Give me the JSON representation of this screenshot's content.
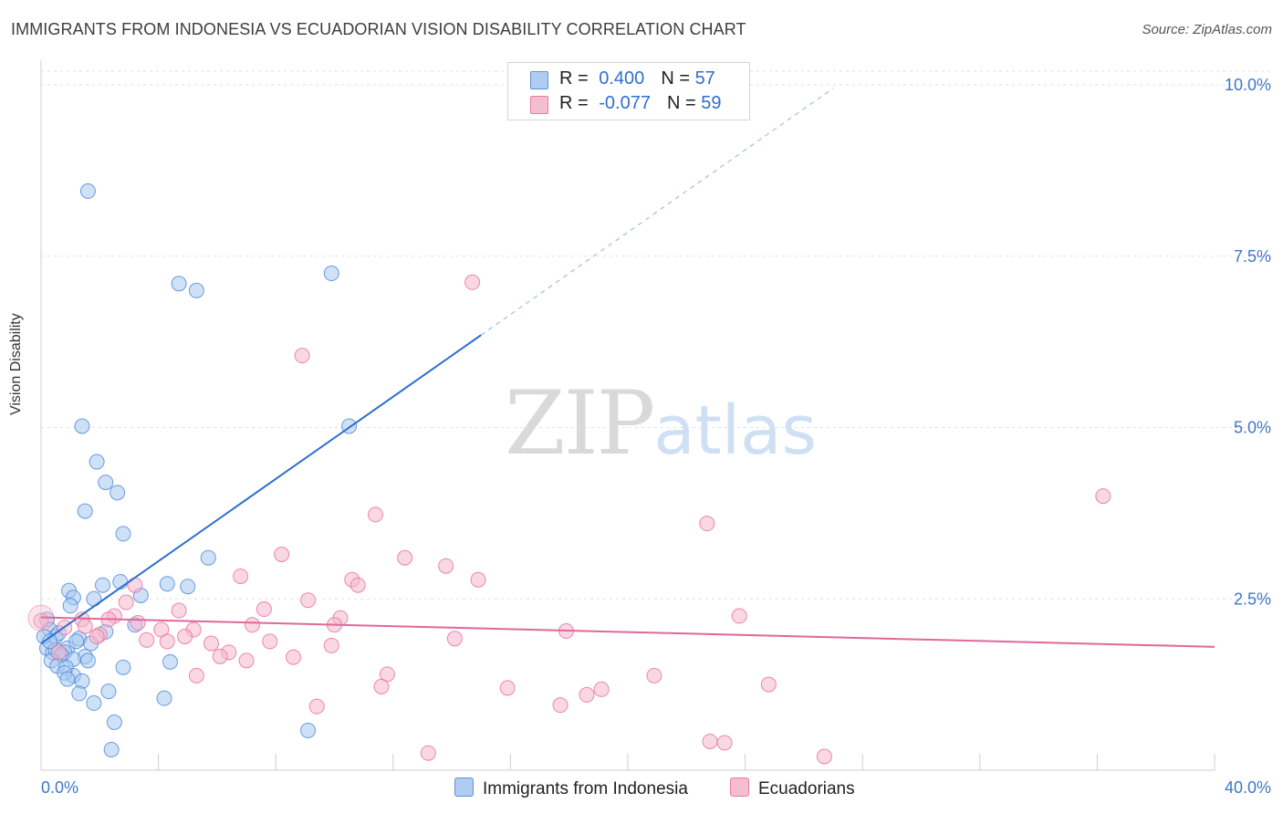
{
  "title": "IMMIGRANTS FROM INDONESIA VS ECUADORIAN VISION DISABILITY CORRELATION CHART",
  "source": "Source: ZipAtlas.com",
  "watermark": {
    "zip": "ZIP",
    "atlas": "atlas"
  },
  "legend": {
    "rows": [
      {
        "r_label": "R = ",
        "r_value": "0.400",
        "n_label": "N = ",
        "n_value": "57",
        "color": "#a8c8f0"
      },
      {
        "r_label": "R = ",
        "r_value": "-0.077",
        "n_label": "N = ",
        "n_value": "59",
        "color": "#f5b8cc"
      }
    ]
  },
  "bottom_legend": [
    {
      "label": "Immigrants from Indonesia",
      "color": "#a8c8f0"
    },
    {
      "label": "Ecuadorians",
      "color": "#f5b8cc"
    }
  ],
  "chart_data": {
    "type": "scatter",
    "ylabel": "Vision Disability",
    "xlabel": "",
    "xlim": [
      0,
      40
    ],
    "ylim": [
      0,
      10.2
    ],
    "x_tick_labels": [
      "0.0%",
      "40.0%"
    ],
    "y_ticks": [
      2.5,
      5.0,
      7.5,
      10.0
    ],
    "y_tick_labels": [
      "2.5%",
      "5.0%",
      "7.5%",
      "10.0%"
    ],
    "grid": true,
    "colors": {
      "blue": "#4a86d8",
      "pink": "#e86d99",
      "blue_line": "#2e6fd0",
      "pink_line": "#e0689a"
    },
    "series": [
      {
        "name": "Immigrants from Indonesia",
        "color": "#4a86d8",
        "trend": {
          "x0": 0,
          "y0": 1.85,
          "x1": 15.0,
          "y1": 6.35,
          "dash_to_x": 27.0,
          "dash_to_y": 9.95
        },
        "points": [
          [
            1.6,
            8.45
          ],
          [
            9.9,
            7.25
          ],
          [
            4.7,
            7.1
          ],
          [
            5.3,
            7.0
          ],
          [
            1.4,
            5.02
          ],
          [
            10.5,
            5.02
          ],
          [
            1.9,
            4.5
          ],
          [
            2.2,
            4.2
          ],
          [
            2.6,
            4.05
          ],
          [
            1.5,
            3.78
          ],
          [
            2.8,
            3.45
          ],
          [
            5.7,
            3.1
          ],
          [
            0.95,
            2.62
          ],
          [
            2.1,
            2.7
          ],
          [
            2.7,
            2.75
          ],
          [
            4.3,
            2.72
          ],
          [
            5.0,
            2.68
          ],
          [
            1.1,
            2.52
          ],
          [
            1.8,
            2.5
          ],
          [
            3.4,
            2.55
          ],
          [
            1.0,
            2.4
          ],
          [
            0.2,
            2.2
          ],
          [
            0.3,
            2.05
          ],
          [
            2.2,
            2.02
          ],
          [
            3.2,
            2.12
          ],
          [
            0.5,
            1.95
          ],
          [
            1.3,
            1.92
          ],
          [
            0.6,
            2.0
          ],
          [
            1.7,
            1.85
          ],
          [
            0.2,
            1.78
          ],
          [
            0.4,
            1.72
          ],
          [
            0.9,
            1.78
          ],
          [
            1.2,
            1.88
          ],
          [
            0.5,
            1.76
          ],
          [
            0.8,
            1.72
          ],
          [
            0.7,
            1.68
          ],
          [
            1.5,
            1.66
          ],
          [
            1.6,
            1.6
          ],
          [
            1.1,
            1.62
          ],
          [
            0.35,
            1.6
          ],
          [
            0.55,
            1.52
          ],
          [
            0.85,
            1.5
          ],
          [
            2.8,
            1.5
          ],
          [
            4.4,
            1.58
          ],
          [
            1.1,
            1.38
          ],
          [
            0.8,
            1.42
          ],
          [
            1.4,
            1.3
          ],
          [
            0.9,
            1.33
          ],
          [
            1.3,
            1.12
          ],
          [
            1.8,
            0.98
          ],
          [
            2.3,
            1.15
          ],
          [
            4.2,
            1.05
          ],
          [
            2.5,
            0.7
          ],
          [
            9.1,
            0.58
          ],
          [
            2.4,
            0.3
          ],
          [
            0.1,
            1.95
          ],
          [
            0.3,
            1.88
          ]
        ]
      },
      {
        "name": "Ecuadorians",
        "color": "#e86d99",
        "trend": {
          "x0": 0,
          "y0": 2.23,
          "x1": 40.0,
          "y1": 1.8
        },
        "points": [
          [
            14.7,
            7.12
          ],
          [
            8.9,
            6.05
          ],
          [
            36.2,
            4.0
          ],
          [
            11.4,
            3.73
          ],
          [
            22.7,
            3.6
          ],
          [
            8.2,
            3.15
          ],
          [
            12.4,
            3.1
          ],
          [
            13.8,
            2.98
          ],
          [
            6.8,
            2.83
          ],
          [
            10.6,
            2.78
          ],
          [
            14.9,
            2.78
          ],
          [
            10.8,
            2.7
          ],
          [
            3.2,
            2.7
          ],
          [
            9.1,
            2.48
          ],
          [
            2.9,
            2.45
          ],
          [
            7.6,
            2.35
          ],
          [
            4.7,
            2.33
          ],
          [
            23.8,
            2.25
          ],
          [
            2.5,
            2.25
          ],
          [
            10.2,
            2.22
          ],
          [
            2.3,
            2.2
          ],
          [
            1.4,
            2.2
          ],
          [
            0.0,
            2.18
          ],
          [
            3.3,
            2.15
          ],
          [
            7.2,
            2.12
          ],
          [
            10.0,
            2.12
          ],
          [
            1.5,
            2.1
          ],
          [
            5.2,
            2.05
          ],
          [
            0.8,
            2.08
          ],
          [
            4.1,
            2.05
          ],
          [
            17.9,
            2.03
          ],
          [
            2.0,
            1.98
          ],
          [
            4.9,
            1.95
          ],
          [
            14.1,
            1.92
          ],
          [
            3.6,
            1.9
          ],
          [
            7.8,
            1.88
          ],
          [
            5.8,
            1.85
          ],
          [
            4.3,
            1.88
          ],
          [
            9.9,
            1.82
          ],
          [
            6.4,
            1.72
          ],
          [
            6.1,
            1.66
          ],
          [
            8.6,
            1.65
          ],
          [
            7.0,
            1.6
          ],
          [
            5.3,
            1.38
          ],
          [
            11.8,
            1.4
          ],
          [
            20.9,
            1.38
          ],
          [
            11.6,
            1.22
          ],
          [
            15.9,
            1.2
          ],
          [
            18.6,
            1.1
          ],
          [
            19.1,
            1.18
          ],
          [
            24.8,
            1.25
          ],
          [
            9.4,
            0.93
          ],
          [
            17.7,
            0.95
          ],
          [
            22.8,
            0.42
          ],
          [
            23.3,
            0.4
          ],
          [
            13.2,
            0.25
          ],
          [
            26.7,
            0.2
          ],
          [
            0.6,
            1.72
          ],
          [
            1.9,
            1.95
          ]
        ]
      }
    ]
  }
}
